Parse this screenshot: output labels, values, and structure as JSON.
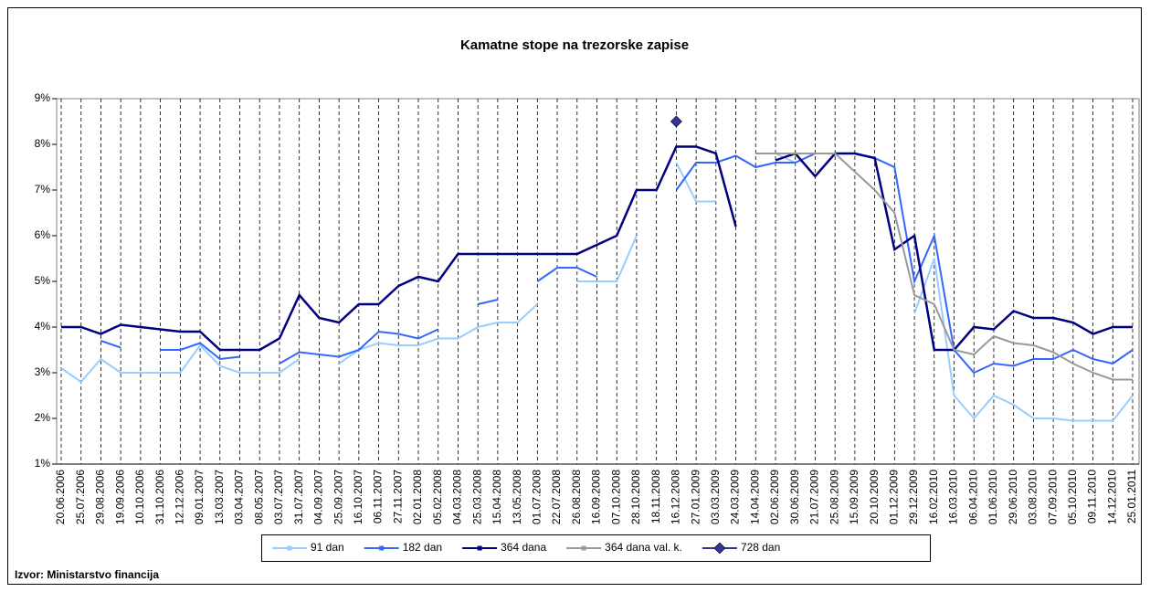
{
  "chart_data": {
    "type": "line",
    "title": "Kamatne stope na trezorske zapise",
    "source": "Izvor: Ministarstvo financija",
    "categories": [
      "20.06.2006",
      "25.07.2006",
      "29.08.2006",
      "19.09.2006",
      "10.10.2006",
      "31.10.2006",
      "12.12.2006",
      "09.01.2007",
      "13.03.2007",
      "03.04.2007",
      "08.05.2007",
      "03.07.2007",
      "31.07.2007",
      "04.09.2007",
      "25.09.2007",
      "16.10.2007",
      "06.11.2007",
      "27.11.2007",
      "02.01.2008",
      "05.02.2008",
      "04.03.2008",
      "25.03.2008",
      "15.04.2008",
      "13.05.2008",
      "01.07.2008",
      "22.07.2008",
      "26.08.2008",
      "16.09.2008",
      "07.10.2008",
      "28.10.2008",
      "18.11.2008",
      "16.12.2008",
      "27.01.2009",
      "03.03.2009",
      "24.03.2009",
      "14.04.2009",
      "02.06.2009",
      "30.06.2009",
      "21.07.2009",
      "25.08.2009",
      "15.09.2009",
      "20.10.2009",
      "01.12.2009",
      "29.12.2009",
      "16.02.2010",
      "16.03.2010",
      "06.04.2010",
      "01.06.2010",
      "29.06.2010",
      "03.08.2010",
      "07.09.2010",
      "05.10.2010",
      "09.11.2010",
      "14.12.2010",
      "25.01.2011"
    ],
    "series": [
      {
        "name": "91 dan",
        "color": "#99ccff",
        "marker": "square",
        "values": [
          3.1,
          2.8,
          3.3,
          3.0,
          3.0,
          3.0,
          3.0,
          3.6,
          3.15,
          3.0,
          3.0,
          3.0,
          3.3,
          null,
          3.2,
          3.5,
          3.65,
          3.6,
          3.6,
          3.75,
          3.75,
          4.0,
          4.1,
          4.1,
          4.5,
          null,
          5.0,
          5.0,
          5.0,
          6.0,
          null,
          7.6,
          6.75,
          6.75,
          null,
          7.8,
          7.8,
          7.6,
          null,
          null,
          null,
          null,
          null,
          4.3,
          5.5,
          2.5,
          2.0,
          2.5,
          2.3,
          2.0,
          2.0,
          1.95,
          1.95,
          1.95,
          2.5
        ]
      },
      {
        "name": "182 dan",
        "color": "#3366ff",
        "marker": "square",
        "values": [
          null,
          null,
          3.7,
          3.55,
          null,
          3.5,
          3.5,
          3.65,
          3.3,
          3.35,
          null,
          3.2,
          3.45,
          3.4,
          3.35,
          3.5,
          3.9,
          3.85,
          3.75,
          3.95,
          null,
          4.5,
          4.6,
          null,
          5.0,
          5.3,
          5.3,
          5.1,
          null,
          6.25,
          null,
          7.0,
          7.6,
          7.6,
          7.75,
          7.5,
          7.6,
          7.6,
          7.8,
          7.8,
          7.8,
          7.7,
          7.5,
          5.0,
          6.0,
          3.5,
          3.0,
          3.2,
          3.15,
          3.3,
          3.3,
          3.5,
          3.3,
          3.2,
          3.5
        ]
      },
      {
        "name": "364 dana",
        "color": "#000080",
        "marker": "square",
        "values": [
          4.0,
          4.0,
          3.85,
          4.05,
          4.0,
          3.95,
          3.9,
          3.9,
          3.5,
          3.5,
          3.5,
          3.75,
          4.7,
          4.2,
          4.1,
          4.5,
          4.5,
          4.9,
          5.1,
          5.0,
          5.6,
          5.6,
          5.6,
          5.6,
          5.6,
          5.6,
          5.6,
          5.8,
          6.0,
          7.0,
          7.0,
          7.95,
          7.95,
          7.8,
          6.2,
          null,
          7.65,
          7.8,
          7.3,
          7.8,
          7.8,
          7.7,
          5.7,
          6.0,
          3.5,
          3.5,
          4.0,
          3.95,
          4.35,
          4.2,
          4.2,
          4.1,
          3.85,
          4.0,
          4.0
        ]
      },
      {
        "name": "364 dana  val. k.",
        "color": "#999999",
        "marker": "square",
        "values": [
          null,
          null,
          null,
          null,
          null,
          null,
          null,
          null,
          null,
          null,
          null,
          null,
          null,
          null,
          null,
          null,
          null,
          null,
          null,
          null,
          null,
          null,
          null,
          null,
          null,
          null,
          null,
          null,
          null,
          null,
          null,
          null,
          null,
          null,
          null,
          7.8,
          7.8,
          7.8,
          7.8,
          7.8,
          7.4,
          7.0,
          6.5,
          4.7,
          4.5,
          3.5,
          3.4,
          3.8,
          3.65,
          3.6,
          3.45,
          3.2,
          3.0,
          2.85,
          2.85
        ]
      },
      {
        "name": "728 dan",
        "color": "#333399",
        "marker": "diamond",
        "values": [
          null,
          null,
          null,
          null,
          null,
          null,
          null,
          null,
          null,
          null,
          null,
          null,
          null,
          null,
          null,
          null,
          null,
          null,
          null,
          null,
          null,
          null,
          null,
          null,
          null,
          null,
          null,
          null,
          null,
          null,
          null,
          8.5,
          null,
          null,
          null,
          null,
          null,
          null,
          null,
          null,
          null,
          null,
          null,
          null,
          null,
          null,
          null,
          null,
          null,
          null,
          null,
          null,
          null,
          null,
          null
        ]
      }
    ],
    "ylim": [
      1,
      9
    ],
    "yticks": [
      {
        "value": 1,
        "label": "1%"
      },
      {
        "value": 2,
        "label": "2%"
      },
      {
        "value": 3,
        "label": "3%"
      },
      {
        "value": 4,
        "label": "4%"
      },
      {
        "value": 5,
        "label": "5%"
      },
      {
        "value": 6,
        "label": "6%"
      },
      {
        "value": 7,
        "label": "7%"
      },
      {
        "value": 8,
        "label": "8%"
      },
      {
        "value": 9,
        "label": "9%"
      }
    ],
    "xgrid": true,
    "legend": "bottom"
  }
}
